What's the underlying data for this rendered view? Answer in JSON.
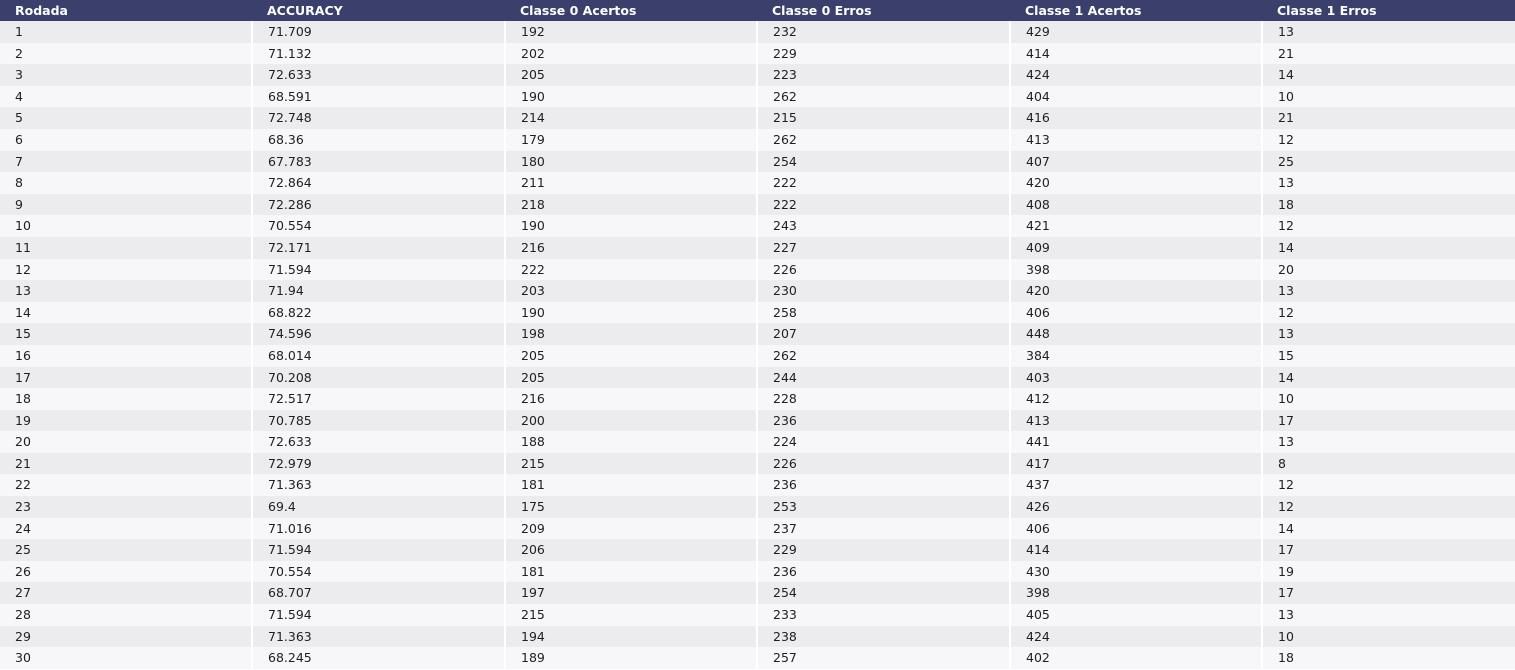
{
  "table": {
    "columns": [
      "Rodada",
      "ACCURACY",
      "Classe 0 Acertos",
      "Classe 0 Erros",
      "Classe 1 Acertos",
      "Classe 1 Erros"
    ],
    "rows": [
      [
        "1",
        "71.709",
        "192",
        "232",
        "429",
        "13"
      ],
      [
        "2",
        "71.132",
        "202",
        "229",
        "414",
        "21"
      ],
      [
        "3",
        "72.633",
        "205",
        "223",
        "424",
        "14"
      ],
      [
        "4",
        "68.591",
        "190",
        "262",
        "404",
        "10"
      ],
      [
        "5",
        "72.748",
        "214",
        "215",
        "416",
        "21"
      ],
      [
        "6",
        "68.36",
        "179",
        "262",
        "413",
        "12"
      ],
      [
        "7",
        "67.783",
        "180",
        "254",
        "407",
        "25"
      ],
      [
        "8",
        "72.864",
        "211",
        "222",
        "420",
        "13"
      ],
      [
        "9",
        "72.286",
        "218",
        "222",
        "408",
        "18"
      ],
      [
        "10",
        "70.554",
        "190",
        "243",
        "421",
        "12"
      ],
      [
        "11",
        "72.171",
        "216",
        "227",
        "409",
        "14"
      ],
      [
        "12",
        "71.594",
        "222",
        "226",
        "398",
        "20"
      ],
      [
        "13",
        "71.94",
        "203",
        "230",
        "420",
        "13"
      ],
      [
        "14",
        "68.822",
        "190",
        "258",
        "406",
        "12"
      ],
      [
        "15",
        "74.596",
        "198",
        "207",
        "448",
        "13"
      ],
      [
        "16",
        "68.014",
        "205",
        "262",
        "384",
        "15"
      ],
      [
        "17",
        "70.208",
        "205",
        "244",
        "403",
        "14"
      ],
      [
        "18",
        "72.517",
        "216",
        "228",
        "412",
        "10"
      ],
      [
        "19",
        "70.785",
        "200",
        "236",
        "413",
        "17"
      ],
      [
        "20",
        "72.633",
        "188",
        "224",
        "441",
        "13"
      ],
      [
        "21",
        "72.979",
        "215",
        "226",
        "417",
        "8"
      ],
      [
        "22",
        "71.363",
        "181",
        "236",
        "437",
        "12"
      ],
      [
        "23",
        "69.4",
        "175",
        "253",
        "426",
        "12"
      ],
      [
        "24",
        "71.016",
        "209",
        "237",
        "406",
        "14"
      ],
      [
        "25",
        "71.594",
        "206",
        "229",
        "414",
        "17"
      ],
      [
        "26",
        "70.554",
        "181",
        "236",
        "430",
        "19"
      ],
      [
        "27",
        "68.707",
        "197",
        "254",
        "398",
        "17"
      ],
      [
        "28",
        "71.594",
        "215",
        "233",
        "405",
        "13"
      ],
      [
        "29",
        "71.363",
        "194",
        "238",
        "424",
        "10"
      ],
      [
        "30",
        "68.245",
        "189",
        "257",
        "402",
        "18"
      ]
    ]
  },
  "colors": {
    "header_bg": "#3a3f6b",
    "header_text": "#ffffff",
    "row_odd_bg": "#ececef",
    "row_even_bg": "#f7f7fa"
  }
}
